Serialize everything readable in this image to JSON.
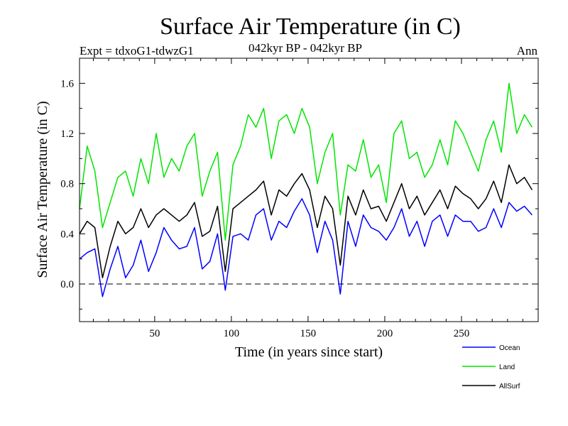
{
  "chart_data": {
    "type": "line",
    "title": "Surface Air Temperature (in C)",
    "subtitle_left": "Expt = tdxoG1-tdwzG1",
    "subtitle_center": "042kyr BP - 042kyr BP",
    "subtitle_right": "Ann",
    "xlabel": "Time (in years since start)",
    "ylabel": "Surface Air Temperature (in C)",
    "xlim": [
      1,
      300
    ],
    "ylim": [
      -0.3,
      1.8
    ],
    "xticks": [
      50,
      100,
      150,
      200,
      250
    ],
    "yticks": [
      0.0,
      0.4,
      0.8,
      1.2,
      1.6
    ],
    "ytick_labels": [
      "0.0",
      "0.4",
      "0.8",
      "1.2",
      "1.6"
    ],
    "zero_line": 0.0,
    "series": [
      {
        "name": "Ocean",
        "color": "#0000ff",
        "x_start": 1,
        "x_step": 5,
        "values": [
          0.2,
          0.25,
          0.28,
          -0.1,
          0.12,
          0.3,
          0.05,
          0.15,
          0.35,
          0.1,
          0.25,
          0.45,
          0.35,
          0.28,
          0.3,
          0.45,
          0.12,
          0.18,
          0.4,
          -0.05,
          0.38,
          0.4,
          0.35,
          0.55,
          0.6,
          0.35,
          0.5,
          0.45,
          0.58,
          0.68,
          0.55,
          0.25,
          0.5,
          0.35,
          -0.08,
          0.5,
          0.3,
          0.55,
          0.45,
          0.42,
          0.35,
          0.45,
          0.6,
          0.38,
          0.5,
          0.3,
          0.5,
          0.55,
          0.38,
          0.55,
          0.5,
          0.5,
          0.42,
          0.45,
          0.6,
          0.45,
          0.65,
          0.58,
          0.62,
          0.55
        ]
      },
      {
        "name": "Land",
        "color": "#00e600",
        "x_start": 1,
        "x_step": 5,
        "values": [
          0.6,
          1.1,
          0.9,
          0.45,
          0.65,
          0.85,
          0.9,
          0.7,
          1.0,
          0.8,
          1.2,
          0.85,
          1.0,
          0.9,
          1.1,
          1.2,
          0.7,
          0.9,
          1.05,
          0.35,
          0.95,
          1.1,
          1.35,
          1.25,
          1.4,
          1.0,
          1.3,
          1.35,
          1.2,
          1.4,
          1.25,
          0.8,
          1.05,
          1.2,
          0.55,
          0.95,
          0.9,
          1.15,
          0.85,
          0.95,
          0.65,
          1.2,
          1.3,
          1.0,
          1.05,
          0.85,
          0.95,
          1.15,
          0.95,
          1.3,
          1.2,
          1.05,
          0.9,
          1.15,
          1.3,
          1.05,
          1.6,
          1.2,
          1.35,
          1.25
        ]
      },
      {
        "name": "AllSurf",
        "color": "#000000",
        "x_start": 1,
        "x_step": 5,
        "values": [
          0.4,
          0.5,
          0.45,
          0.05,
          0.3,
          0.5,
          0.4,
          0.45,
          0.6,
          0.45,
          0.55,
          0.6,
          0.55,
          0.5,
          0.55,
          0.65,
          0.38,
          0.42,
          0.62,
          0.1,
          0.6,
          0.65,
          0.7,
          0.75,
          0.82,
          0.55,
          0.75,
          0.7,
          0.8,
          0.88,
          0.75,
          0.45,
          0.7,
          0.6,
          0.15,
          0.7,
          0.55,
          0.75,
          0.6,
          0.62,
          0.5,
          0.65,
          0.8,
          0.6,
          0.7,
          0.55,
          0.65,
          0.75,
          0.6,
          0.78,
          0.72,
          0.68,
          0.6,
          0.68,
          0.82,
          0.65,
          0.95,
          0.8,
          0.85,
          0.75
        ]
      }
    ]
  }
}
